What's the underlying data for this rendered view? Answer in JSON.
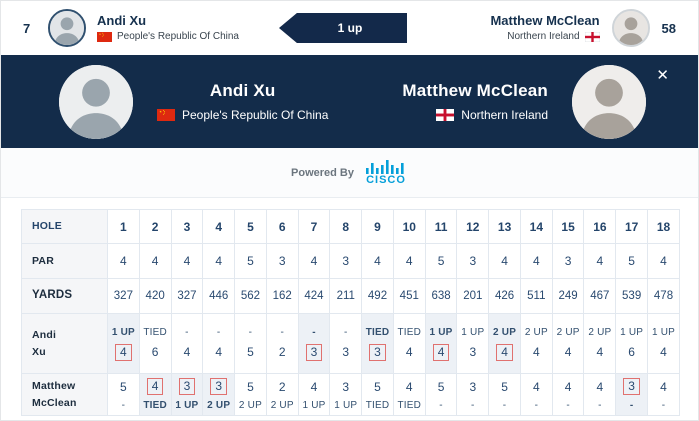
{
  "top_bar": {
    "match_number": "7",
    "score_label": "1 up",
    "player1": {
      "name": "Andi Xu",
      "country": "People's Republic Of China"
    },
    "player2": {
      "name": "Matthew McClean",
      "country": "Northern Ireland",
      "score_number": "58"
    }
  },
  "banner": {
    "player1": {
      "name": "Andi Xu",
      "country": "People's Republic Of China"
    },
    "player2": {
      "name": "Matthew McClean",
      "country": "Northern Ireland"
    },
    "close_icon": "✕"
  },
  "powered_by": {
    "label": "Powered By",
    "brand": "CISCO"
  },
  "scorecard": {
    "row_labels": {
      "hole": "HOLE",
      "par": "PAR",
      "yards": "YARDS",
      "player1": "Andi\nXu",
      "player2": "Matthew\nMcClean"
    },
    "holes": [
      1,
      2,
      3,
      4,
      5,
      6,
      7,
      8,
      9,
      10,
      11,
      12,
      13,
      14,
      15,
      16,
      17,
      18
    ],
    "par": [
      4,
      4,
      4,
      4,
      5,
      3,
      4,
      3,
      4,
      4,
      5,
      3,
      4,
      4,
      3,
      4,
      5,
      4
    ],
    "yards": [
      327,
      420,
      327,
      446,
      562,
      162,
      424,
      211,
      492,
      451,
      638,
      201,
      426,
      511,
      249,
      467,
      539,
      478
    ],
    "player1": {
      "status": [
        "1 UP",
        "TIED",
        "-",
        "-",
        "-",
        "-",
        "-",
        "-",
        "TIED",
        "TIED",
        "1 UP",
        "1 UP",
        "2 UP",
        "2 UP",
        "2 UP",
        "2 UP",
        "1 UP",
        "1 UP"
      ],
      "scores": [
        4,
        6,
        4,
        4,
        5,
        2,
        3,
        3,
        3,
        4,
        4,
        3,
        4,
        4,
        4,
        4,
        6,
        4
      ],
      "won_holes": [
        1,
        7,
        9,
        11,
        13
      ]
    },
    "player2": {
      "scores": [
        5,
        4,
        3,
        3,
        5,
        2,
        4,
        3,
        5,
        4,
        5,
        3,
        5,
        4,
        4,
        4,
        3,
        4
      ],
      "status": [
        "-",
        "TIED",
        "1 UP",
        "2 UP",
        "2 UP",
        "2 UP",
        "1 UP",
        "1 UP",
        "TIED",
        "TIED",
        "-",
        "-",
        "-",
        "-",
        "-",
        "-",
        "-",
        "-"
      ],
      "won_holes": [
        2,
        3,
        4,
        17
      ]
    }
  },
  "colors": {
    "navy": "#132c4a",
    "cisco_blue": "#049fd9",
    "red_box": "#e0716f",
    "won_highlight": "#edf1f6"
  }
}
